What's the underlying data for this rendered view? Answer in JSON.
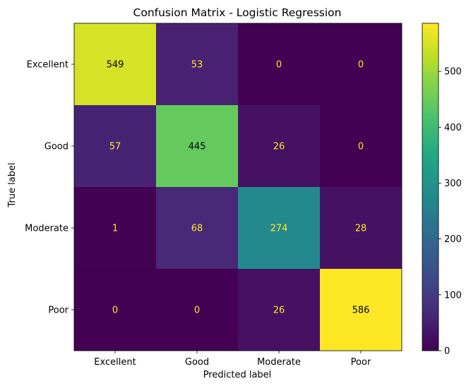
{
  "chart_data": {
    "type": "heatmap",
    "title": "Confusion Matrix - Logistic Regression",
    "xlabel": "Predicted label",
    "ylabel": "True label",
    "x_categories": [
      "Excellent",
      "Good",
      "Moderate",
      "Poor"
    ],
    "y_categories": [
      "Excellent",
      "Good",
      "Moderate",
      "Poor"
    ],
    "values": [
      [
        549,
        53,
        0,
        0
      ],
      [
        57,
        445,
        26,
        0
      ],
      [
        1,
        68,
        274,
        28
      ],
      [
        0,
        0,
        26,
        586
      ]
    ],
    "colormap": "viridis",
    "color_range": [
      0,
      586
    ],
    "colorbar_ticks": [
      0,
      100,
      200,
      300,
      400,
      500
    ],
    "colorbar_tick_labels": [
      "0",
      "100",
      "200",
      "300",
      "400",
      "500"
    ],
    "text_color_light": "#fde725",
    "text_color_dark": "#000000"
  }
}
